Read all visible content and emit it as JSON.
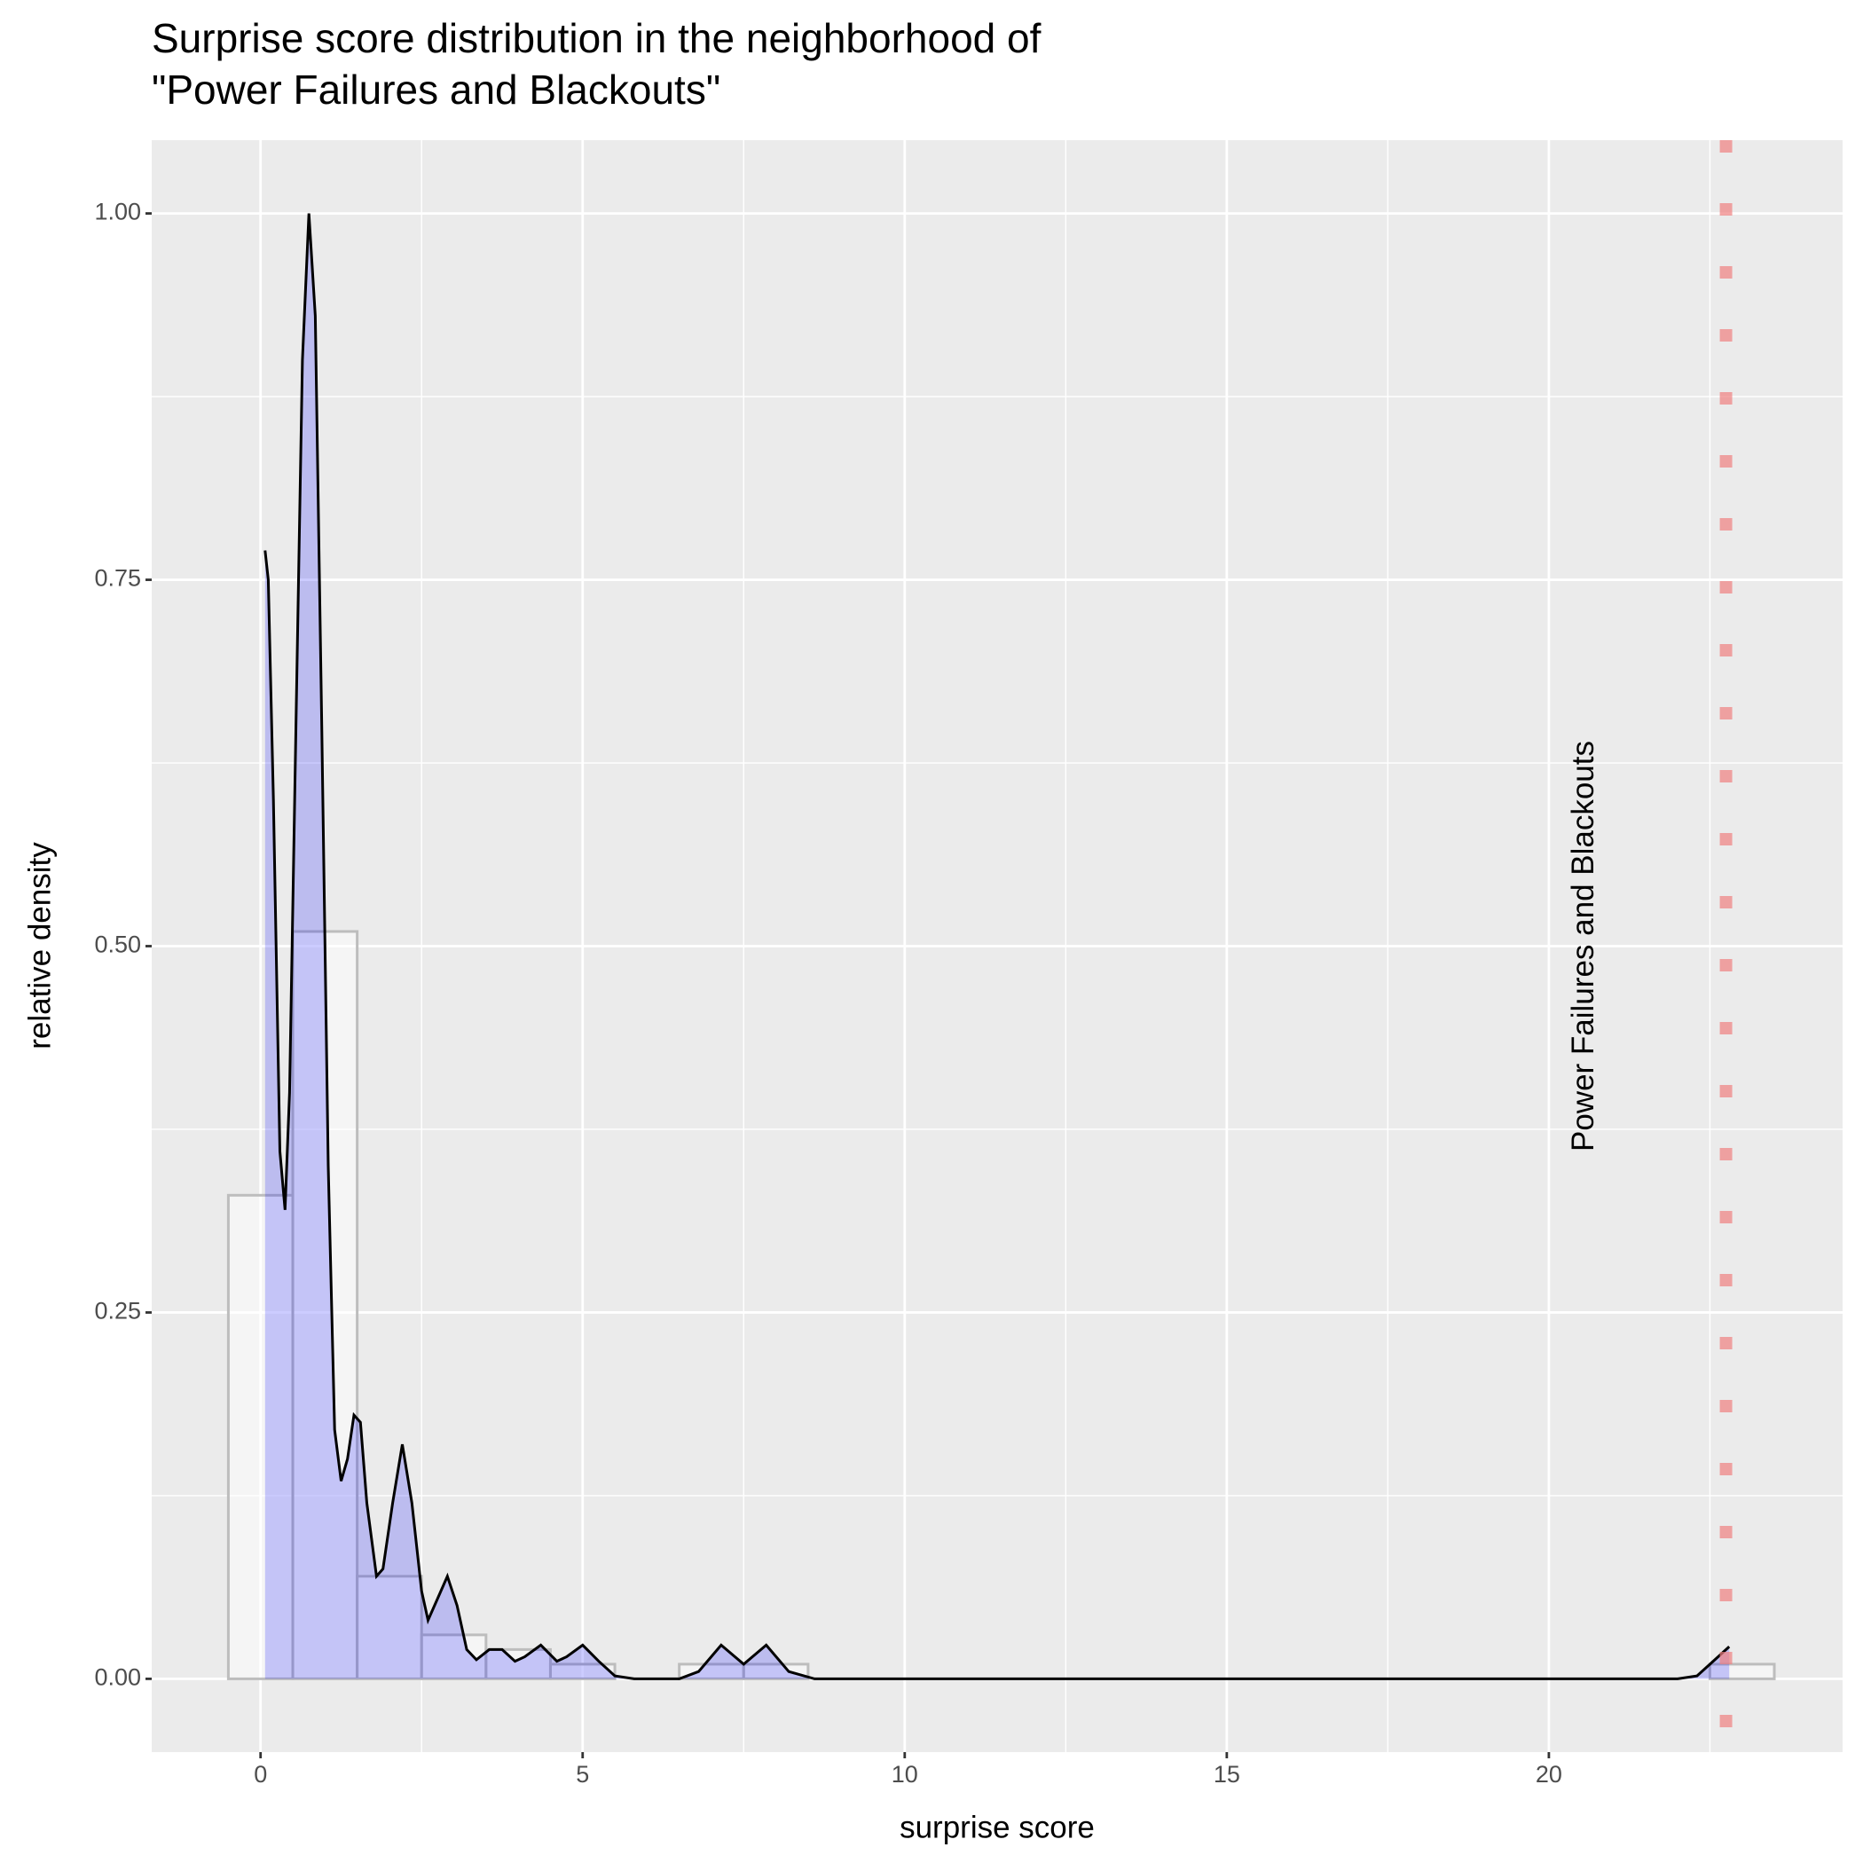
{
  "chart_data": {
    "type": "histogram",
    "title": [
      "Surprise score distribution in the neighborhood of",
      "\"Power Failures and Blackouts\""
    ],
    "xlabel": "surprise score",
    "ylabel": "relative density",
    "bins": [
      -0.5,
      0.5,
      1.5,
      2.5,
      3.5,
      4.5,
      5.5,
      6.5,
      7.5,
      8.5,
      9.5,
      10.5,
      11.5,
      12.5,
      13.5,
      14.5,
      15.5,
      16.5,
      17.5,
      18.5,
      19.5,
      20.5,
      21.5,
      22.5,
      23.5
    ],
    "values": [
      0.33,
      0.51,
      0.07,
      0.03,
      0.02,
      0.01,
      0,
      0.01,
      0.01,
      0,
      0,
      0,
      0,
      0,
      0,
      0,
      0,
      0,
      0,
      0,
      0,
      0,
      0,
      0.01
    ],
    "density": {
      "x": [
        0.07,
        0.12,
        0.2,
        0.3,
        0.38,
        0.45,
        0.55,
        0.65,
        0.75,
        0.85,
        0.95,
        1.05,
        1.15,
        1.25,
        1.35,
        1.45,
        1.55,
        1.65,
        1.8,
        1.9,
        2.05,
        2.2,
        2.35,
        2.5,
        2.6,
        2.75,
        2.9,
        3.05,
        3.2,
        3.35,
        3.55,
        3.75,
        3.95,
        4.1,
        4.35,
        4.6,
        4.75,
        5.0,
        5.25,
        5.5,
        5.8,
        6.5,
        6.8,
        7.15,
        7.5,
        7.85,
        8.2,
        8.6,
        22.0,
        22.3,
        22.55,
        22.8
      ],
      "y": [
        0.77,
        0.75,
        0.6,
        0.36,
        0.32,
        0.4,
        0.65,
        0.9,
        1.0,
        0.93,
        0.65,
        0.35,
        0.17,
        0.135,
        0.15,
        0.18,
        0.175,
        0.12,
        0.07,
        0.075,
        0.12,
        0.16,
        0.12,
        0.06,
        0.04,
        0.055,
        0.07,
        0.05,
        0.02,
        0.013,
        0.02,
        0.02,
        0.012,
        0.015,
        0.023,
        0.012,
        0.015,
        0.023,
        0.012,
        0.002,
        0,
        0,
        0.005,
        0.023,
        0.01,
        0.023,
        0.005,
        0,
        0,
        0.002,
        0.012,
        0.022
      ],
      "color": "#000000",
      "fill": "rgba(0,0,255,0.2)"
    },
    "bar_fill": "rgba(255,255,255,0.5)",
    "bar_stroke": "#bdbdbd",
    "xlim": [
      -1.69,
      24.56
    ],
    "ylim": [
      -0.05,
      1.05
    ],
    "xticks": [
      0,
      5,
      10,
      15,
      20
    ],
    "yticks": [
      {
        "value": 0,
        "label": "0.00"
      },
      {
        "value": 0.25,
        "label": "0.25"
      },
      {
        "value": 0.5,
        "label": "0.50"
      },
      {
        "value": 0.75,
        "label": "0.75"
      },
      {
        "value": 1,
        "label": "1.00"
      }
    ],
    "x_minor_breaks": [
      2.5,
      7.5,
      12.5,
      17.5,
      22.5
    ],
    "y_minor_breaks": [
      0.125,
      0.375,
      0.625,
      0.875
    ],
    "grid": true,
    "vline": {
      "x": 22.75,
      "color": "#f08080"
    },
    "annotation": {
      "text": "Power Failures and Blackouts",
      "x": 20.56,
      "y": 0.5
    }
  }
}
